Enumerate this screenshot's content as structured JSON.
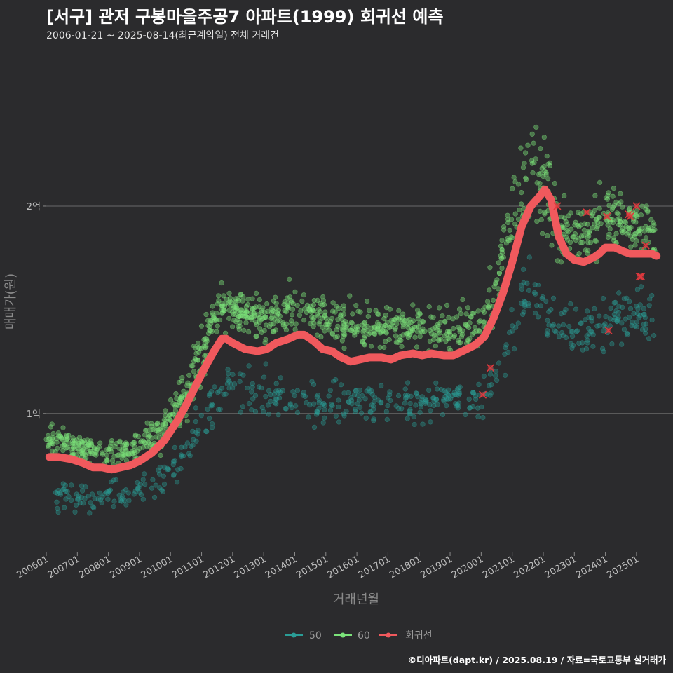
{
  "title": "[서구] 관저 구봉마을주공7 아파트(1999) 회귀선 예측",
  "subtitle": "2006-01-21 ~ 2025-08-14(최근계약일) 전체 거래건",
  "credit": "©디아파트(dapt.kr) / 2025.08.19 / 자료=국토교통부 실거래가",
  "colors": {
    "background": "#2b2b2d",
    "series50": "#2a9d96",
    "series60": "#7be37a",
    "regression": "#f0595d",
    "recent": "#e0393e",
    "grid": "#6a6a6a"
  },
  "chart_data": {
    "type": "scatter",
    "xlabel": "거래년월",
    "ylabel": "매매가(원)",
    "xlim": [
      2006.0,
      2025.95
    ],
    "ylim": [
      0.33,
      2.73
    ],
    "y_unit": "억",
    "yticks": [
      {
        "value": 1,
        "label": "1억"
      },
      {
        "value": 2,
        "label": "2억"
      }
    ],
    "xticks": [
      {
        "value": 2006.0,
        "label": "200601"
      },
      {
        "value": 2007.0,
        "label": "200701"
      },
      {
        "value": 2008.0,
        "label": "200801"
      },
      {
        "value": 2009.0,
        "label": "200901"
      },
      {
        "value": 2010.0,
        "label": "201001"
      },
      {
        "value": 2011.0,
        "label": "201101"
      },
      {
        "value": 2012.0,
        "label": "201201"
      },
      {
        "value": 2013.0,
        "label": "201301"
      },
      {
        "value": 2014.0,
        "label": "201401"
      },
      {
        "value": 2015.0,
        "label": "201501"
      },
      {
        "value": 2016.0,
        "label": "201601"
      },
      {
        "value": 2017.0,
        "label": "201701"
      },
      {
        "value": 2018.0,
        "label": "201801"
      },
      {
        "value": 2019.0,
        "label": "201901"
      },
      {
        "value": 2020.0,
        "label": "202001"
      },
      {
        "value": 2021.0,
        "label": "202101"
      },
      {
        "value": 2022.0,
        "label": "202201"
      },
      {
        "value": 2023.0,
        "label": "202301"
      },
      {
        "value": 2024.0,
        "label": "202401"
      },
      {
        "value": 2025.0,
        "label": "202501"
      }
    ],
    "legend": [
      {
        "key": "50",
        "label": "50"
      },
      {
        "key": "60",
        "label": "60"
      },
      {
        "key": "reg",
        "label": "회귀선"
      }
    ],
    "series": [
      {
        "name": "50",
        "band": [
          [
            2006.3,
            0.6,
            0.05
          ],
          [
            2007.0,
            0.6,
            0.05
          ],
          [
            2008.0,
            0.6,
            0.05
          ],
          [
            2009.0,
            0.62,
            0.05
          ],
          [
            2009.8,
            0.68,
            0.06
          ],
          [
            2010.5,
            0.8,
            0.07
          ],
          [
            2011.0,
            0.95,
            0.08
          ],
          [
            2011.5,
            1.1,
            0.07
          ],
          [
            2012.5,
            1.1,
            0.08
          ],
          [
            2013.5,
            1.08,
            0.08
          ],
          [
            2014.5,
            1.03,
            0.07
          ],
          [
            2015.5,
            1.05,
            0.07
          ],
          [
            2016.5,
            1.05,
            0.07
          ],
          [
            2017.5,
            1.04,
            0.07
          ],
          [
            2018.5,
            1.07,
            0.07
          ],
          [
            2019.5,
            1.05,
            0.07
          ],
          [
            2020.0,
            1.05,
            0.07
          ],
          [
            2020.5,
            1.22,
            0.08
          ],
          [
            2021.0,
            1.45,
            0.1
          ],
          [
            2021.5,
            1.6,
            0.1
          ],
          [
            2021.9,
            1.52,
            0.09
          ],
          [
            2022.8,
            1.42,
            0.1
          ],
          [
            2023.5,
            1.42,
            0.1
          ],
          [
            2024.5,
            1.48,
            0.08
          ],
          [
            2025.6,
            1.45,
            0.1
          ]
        ]
      },
      {
        "name": "60",
        "band": [
          [
            2006.0,
            0.88,
            0.05
          ],
          [
            2007.0,
            0.83,
            0.04
          ],
          [
            2008.0,
            0.82,
            0.05
          ],
          [
            2009.0,
            0.83,
            0.05
          ],
          [
            2009.8,
            0.92,
            0.06
          ],
          [
            2010.5,
            1.1,
            0.08
          ],
          [
            2011.0,
            1.28,
            0.09
          ],
          [
            2011.4,
            1.48,
            0.06
          ],
          [
            2012.0,
            1.52,
            0.07
          ],
          [
            2013.0,
            1.45,
            0.07
          ],
          [
            2014.0,
            1.52,
            0.08
          ],
          [
            2015.0,
            1.45,
            0.07
          ],
          [
            2016.0,
            1.42,
            0.07
          ],
          [
            2017.0,
            1.42,
            0.07
          ],
          [
            2018.0,
            1.42,
            0.07
          ],
          [
            2019.0,
            1.4,
            0.07
          ],
          [
            2020.0,
            1.42,
            0.07
          ],
          [
            2020.5,
            1.62,
            0.1
          ],
          [
            2021.0,
            1.95,
            0.12
          ],
          [
            2021.5,
            2.25,
            0.2
          ],
          [
            2022.0,
            2.1,
            0.2
          ],
          [
            2022.6,
            1.88,
            0.1
          ],
          [
            2023.2,
            1.85,
            0.09
          ],
          [
            2023.8,
            1.95,
            0.12
          ],
          [
            2024.5,
            1.95,
            0.1
          ],
          [
            2025.0,
            1.9,
            0.09
          ],
          [
            2025.6,
            1.85,
            0.1
          ]
        ]
      }
    ],
    "regression": {
      "name": "회귀선",
      "x": [
        2006.1,
        2006.4,
        2006.8,
        2007.2,
        2007.5,
        2007.8,
        2008.1,
        2008.4,
        2008.7,
        2009.0,
        2009.4,
        2009.8,
        2010.2,
        2010.5,
        2010.8,
        2011.1,
        2011.4,
        2011.65,
        2011.8,
        2012.0,
        2012.4,
        2012.8,
        2013.1,
        2013.4,
        2013.8,
        2014.1,
        2014.3,
        2014.6,
        2014.9,
        2015.2,
        2015.5,
        2015.8,
        2016.1,
        2016.4,
        2016.8,
        2017.1,
        2017.4,
        2017.8,
        2018.1,
        2018.4,
        2018.8,
        2019.1,
        2019.4,
        2019.8,
        2020.1,
        2020.4,
        2020.7,
        2021.0,
        2021.3,
        2021.6,
        2021.9,
        2022.05,
        2022.25,
        2022.5,
        2022.75,
        2023.0,
        2023.3,
        2023.6,
        2023.8,
        2024.0,
        2024.3,
        2024.6,
        2024.8,
        2025.0,
        2025.3,
        2025.5,
        2025.65
      ],
      "y": [
        0.79,
        0.79,
        0.78,
        0.76,
        0.74,
        0.74,
        0.73,
        0.74,
        0.75,
        0.77,
        0.81,
        0.87,
        0.96,
        1.04,
        1.13,
        1.22,
        1.3,
        1.36,
        1.36,
        1.34,
        1.31,
        1.3,
        1.31,
        1.34,
        1.36,
        1.38,
        1.38,
        1.35,
        1.31,
        1.3,
        1.27,
        1.25,
        1.26,
        1.27,
        1.27,
        1.26,
        1.28,
        1.29,
        1.28,
        1.29,
        1.28,
        1.28,
        1.3,
        1.33,
        1.37,
        1.46,
        1.58,
        1.73,
        1.9,
        2.0,
        2.05,
        2.08,
        2.03,
        1.85,
        1.77,
        1.74,
        1.73,
        1.75,
        1.77,
        1.8,
        1.8,
        1.78,
        1.77,
        1.77,
        1.77,
        1.77,
        1.76
      ]
    },
    "recent_trades": [
      {
        "x": 2020.05,
        "y": 1.09
      },
      {
        "x": 2020.3,
        "y": 1.22
      },
      {
        "x": 2022.45,
        "y": 2.0
      },
      {
        "x": 2023.4,
        "y": 1.97
      },
      {
        "x": 2024.05,
        "y": 1.95
      },
      {
        "x": 2024.1,
        "y": 1.4
      },
      {
        "x": 2024.75,
        "y": 1.96
      },
      {
        "x": 2024.8,
        "y": 1.95
      },
      {
        "x": 2025.0,
        "y": 2.0
      },
      {
        "x": 2025.1,
        "y": 1.66
      },
      {
        "x": 2025.15,
        "y": 1.66
      },
      {
        "x": 2025.3,
        "y": 1.81
      }
    ]
  }
}
